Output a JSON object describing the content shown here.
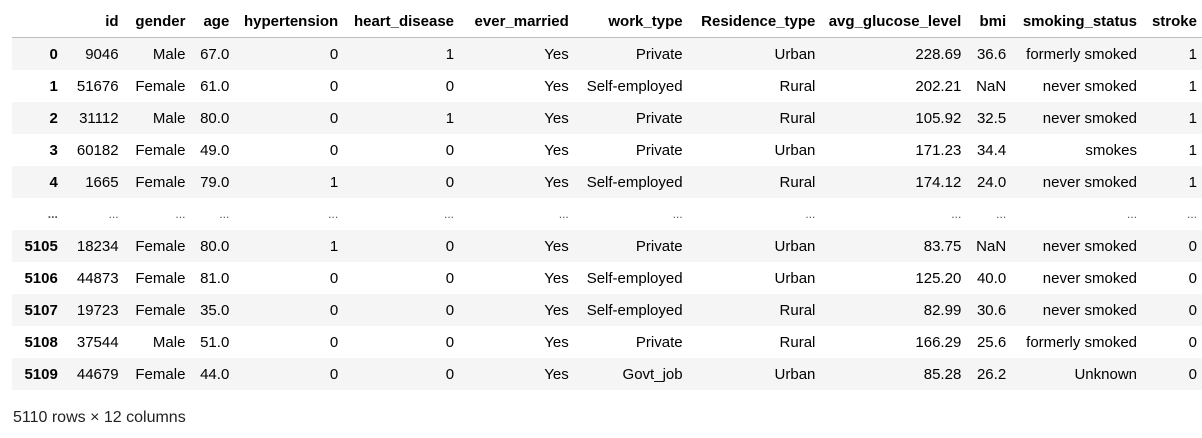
{
  "table": {
    "columns": [
      "",
      "id",
      "gender",
      "age",
      "hypertension",
      "heart_disease",
      "ever_married",
      "work_type",
      "Residence_type",
      "avg_glucose_level",
      "bmi",
      "smoking_status",
      "stroke"
    ],
    "rows": [
      [
        "0",
        "9046",
        "Male",
        "67.0",
        "0",
        "1",
        "Yes",
        "Private",
        "Urban",
        "228.69",
        "36.6",
        "formerly smoked",
        "1"
      ],
      [
        "1",
        "51676",
        "Female",
        "61.0",
        "0",
        "0",
        "Yes",
        "Self-employed",
        "Rural",
        "202.21",
        "NaN",
        "never smoked",
        "1"
      ],
      [
        "2",
        "31112",
        "Male",
        "80.0",
        "0",
        "1",
        "Yes",
        "Private",
        "Rural",
        "105.92",
        "32.5",
        "never smoked",
        "1"
      ],
      [
        "3",
        "60182",
        "Female",
        "49.0",
        "0",
        "0",
        "Yes",
        "Private",
        "Urban",
        "171.23",
        "34.4",
        "smokes",
        "1"
      ],
      [
        "4",
        "1665",
        "Female",
        "79.0",
        "1",
        "0",
        "Yes",
        "Self-employed",
        "Rural",
        "174.12",
        "24.0",
        "never smoked",
        "1"
      ],
      [
        "...",
        "...",
        "...",
        "...",
        "...",
        "...",
        "...",
        "...",
        "...",
        "...",
        "...",
        "...",
        "..."
      ],
      [
        "5105",
        "18234",
        "Female",
        "80.0",
        "1",
        "0",
        "Yes",
        "Private",
        "Urban",
        "83.75",
        "NaN",
        "never smoked",
        "0"
      ],
      [
        "5106",
        "44873",
        "Female",
        "81.0",
        "0",
        "0",
        "Yes",
        "Self-employed",
        "Urban",
        "125.20",
        "40.0",
        "never smoked",
        "0"
      ],
      [
        "5107",
        "19723",
        "Female",
        "35.0",
        "0",
        "0",
        "Yes",
        "Self-employed",
        "Rural",
        "82.99",
        "30.6",
        "never smoked",
        "0"
      ],
      [
        "5108",
        "37544",
        "Male",
        "51.0",
        "0",
        "0",
        "Yes",
        "Private",
        "Rural",
        "166.29",
        "25.6",
        "formerly smoked",
        "0"
      ],
      [
        "5109",
        "44679",
        "Female",
        "44.0",
        "0",
        "0",
        "Yes",
        "Govt_job",
        "Urban",
        "85.28",
        "26.2",
        "Unknown",
        "0"
      ]
    ]
  },
  "footer": {
    "summary": "5110 rows × 12 columns"
  }
}
